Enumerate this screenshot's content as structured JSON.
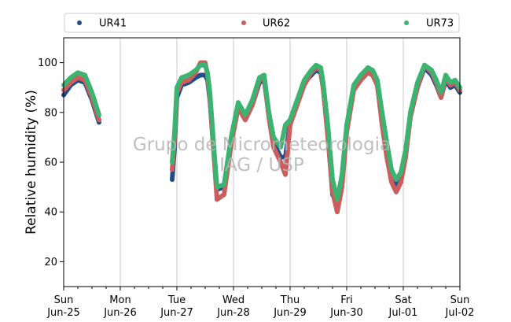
{
  "colors": {
    "UR41": "#1f4e8c",
    "UR62": "#cd5c5c",
    "UR73": "#3cb371",
    "grid": "#c8c8c8",
    "watermark": "#b4b4b4"
  },
  "watermark": {
    "line1": "Grupo de Micrometeorologia",
    "line2": "IAG / USP"
  },
  "chart_data": {
    "type": "scatter",
    "title": "",
    "xlabel": "",
    "ylabel": "Relative humidity (%)",
    "ylim": [
      10,
      110
    ],
    "yticks": [
      20,
      40,
      60,
      80,
      100
    ],
    "grid": "vertical at day boundaries",
    "legend_placement": "top",
    "x_start": "2017-06-25 00:00",
    "x_end": "2017-07-02 00:00",
    "x_ticks": [
      {
        "day": "Sun",
        "date": "Jun-25"
      },
      {
        "day": "Mon",
        "date": "Jun-26"
      },
      {
        "day": "Tue",
        "date": "Jun-27"
      },
      {
        "day": "Wed",
        "date": "Jun-28"
      },
      {
        "day": "Thu",
        "date": "Jun-29"
      },
      {
        "day": "Fri",
        "date": "Jun-30"
      },
      {
        "day": "Sat",
        "date": "Jul-01"
      },
      {
        "day": "Sun",
        "date": "Jul-02"
      }
    ],
    "series": [
      {
        "name": "UR73",
        "x": [
          "2017-06-25 00:00",
          "2017-06-25 03:00",
          "2017-06-25 06:00",
          "2017-06-25 09:00",
          "2017-06-25 12:00",
          "2017-06-25 14:00",
          "2017-06-25 15:00",
          "2017-06-26 22:00",
          "2017-06-26 23:00",
          "2017-06-27 00:00",
          "2017-06-27 02:00",
          "2017-06-27 05:00",
          "2017-06-27 08:00",
          "2017-06-27 10:00",
          "2017-06-27 12:00",
          "2017-06-27 13:00",
          "2017-06-27 14:00",
          "2017-06-27 15:00",
          "2017-06-27 16:00",
          "2017-06-27 17:00",
          "2017-06-27 20:00",
          "2017-06-27 23:00",
          "2017-06-28 02:00",
          "2017-06-28 05:00",
          "2017-06-28 08:00",
          "2017-06-28 11:00",
          "2017-06-28 13:00",
          "2017-06-28 15:00",
          "2017-06-28 17:00",
          "2017-06-28 20:00",
          "2017-06-28 22:00",
          "2017-06-29 00:00",
          "2017-06-29 03:00",
          "2017-06-29 06:00",
          "2017-06-29 09:00",
          "2017-06-29 11:00",
          "2017-06-29 13:00",
          "2017-06-29 14:00",
          "2017-06-29 16:00",
          "2017-06-29 18:00",
          "2017-06-29 20:00",
          "2017-06-29 22:00",
          "2017-06-30 00:00",
          "2017-06-30 03:00",
          "2017-06-30 06:00",
          "2017-06-30 09:00",
          "2017-06-30 11:00",
          "2017-06-30 13:00",
          "2017-06-30 15:00",
          "2017-06-30 17:00",
          "2017-06-30 19:00",
          "2017-06-30 21:00",
          "2017-06-30 23:00",
          "2017-07-01 01:00",
          "2017-07-01 03:00",
          "2017-07-01 06:00",
          "2017-07-01 09:00",
          "2017-07-01 12:00",
          "2017-07-01 14:00",
          "2017-07-01 16:00",
          "2017-07-01 18:00",
          "2017-07-01 20:00",
          "2017-07-01 22:00",
          "2017-07-02 00:00"
        ],
        "y": [
          91,
          94,
          96,
          95,
          88,
          82,
          79,
          60,
          72,
          90,
          94,
          95,
          97,
          99,
          99,
          96,
          88,
          75,
          62,
          50,
          51,
          70,
          84,
          79,
          85,
          94,
          95,
          80,
          70,
          66,
          75,
          77,
          85,
          93,
          97,
          99,
          98,
          92,
          75,
          53,
          45,
          55,
          75,
          91,
          95,
          98,
          97,
          93,
          80,
          68,
          57,
          53,
          56,
          65,
          80,
          92,
          99,
          97,
          93,
          88,
          95,
          92,
          93,
          90
        ]
      },
      {
        "name": "UR62",
        "x": [
          "2017-06-25 00:00",
          "2017-06-25 03:00",
          "2017-06-25 06:00",
          "2017-06-25 09:00",
          "2017-06-25 12:00",
          "2017-06-25 14:00",
          "2017-06-25 15:00",
          "2017-06-26 22:00",
          "2017-06-26 23:00",
          "2017-06-27 00:00",
          "2017-06-27 02:00",
          "2017-06-27 05:00",
          "2017-06-27 08:00",
          "2017-06-27 10:00",
          "2017-06-27 12:00",
          "2017-06-27 13:00",
          "2017-06-27 14:00",
          "2017-06-27 15:00",
          "2017-06-27 16:00",
          "2017-06-27 17:00",
          "2017-06-27 20:00",
          "2017-06-27 23:00",
          "2017-06-28 02:00",
          "2017-06-28 05:00",
          "2017-06-28 08:00",
          "2017-06-28 11:00",
          "2017-06-28 13:00",
          "2017-06-28 15:00",
          "2017-06-28 17:00",
          "2017-06-28 20:00",
          "2017-06-28 22:00",
          "2017-06-29 00:00",
          "2017-06-29 03:00",
          "2017-06-29 06:00",
          "2017-06-29 09:00",
          "2017-06-29 11:00",
          "2017-06-29 13:00",
          "2017-06-29 14:00",
          "2017-06-29 16:00",
          "2017-06-29 18:00",
          "2017-06-29 20:00",
          "2017-06-29 22:00",
          "2017-06-30 00:00",
          "2017-06-30 03:00",
          "2017-06-30 06:00",
          "2017-06-30 09:00",
          "2017-06-30 11:00",
          "2017-06-30 13:00",
          "2017-06-30 15:00",
          "2017-06-30 17:00",
          "2017-06-30 19:00",
          "2017-06-30 21:00",
          "2017-06-30 23:00",
          "2017-07-01 01:00",
          "2017-07-01 03:00",
          "2017-07-01 06:00",
          "2017-07-01 09:00",
          "2017-07-01 12:00",
          "2017-07-01 14:00",
          "2017-07-01 16:00",
          "2017-07-01 18:00",
          "2017-07-01 20:00",
          "2017-07-01 22:00",
          "2017-07-02 00:00"
        ],
        "y": [
          89,
          92,
          94,
          93,
          86,
          80,
          77,
          57,
          69,
          88,
          92,
          93,
          96,
          100,
          100,
          95,
          86,
          72,
          59,
          45,
          47,
          67,
          82,
          77,
          83,
          93,
          94,
          78,
          66,
          60,
          55,
          75,
          83,
          91,
          96,
          98,
          97,
          90,
          70,
          48,
          40,
          50,
          72,
          89,
          93,
          96,
          95,
          91,
          75,
          62,
          52,
          48,
          52,
          62,
          78,
          90,
          99,
          96,
          92,
          86,
          94,
          91,
          92,
          89
        ]
      },
      {
        "name": "UR41",
        "x": [
          "2017-06-25 00:00",
          "2017-06-25 03:00",
          "2017-06-25 06:00",
          "2017-06-25 09:00",
          "2017-06-25 12:00",
          "2017-06-25 14:00",
          "2017-06-25 15:00",
          "2017-06-26 22:00",
          "2017-06-26 23:00",
          "2017-06-27 00:00",
          "2017-06-27 02:00",
          "2017-06-27 05:00",
          "2017-06-27 08:00",
          "2017-06-27 10:00",
          "2017-06-27 12:00",
          "2017-06-27 13:00",
          "2017-06-27 14:00",
          "2017-06-27 15:00",
          "2017-06-27 16:00",
          "2017-06-27 17:00",
          "2017-06-27 20:00",
          "2017-06-27 23:00",
          "2017-06-28 02:00",
          "2017-06-28 05:00",
          "2017-06-28 08:00",
          "2017-06-28 11:00",
          "2017-06-28 13:00",
          "2017-06-28 15:00",
          "2017-06-28 17:00",
          "2017-06-28 20:00",
          "2017-06-28 22:00",
          "2017-06-29 00:00",
          "2017-06-29 03:00",
          "2017-06-29 06:00",
          "2017-06-29 09:00",
          "2017-06-29 11:00",
          "2017-06-29 13:00",
          "2017-06-29 14:00",
          "2017-06-29 16:00",
          "2017-06-29 18:00",
          "2017-06-29 20:00",
          "2017-06-29 22:00",
          "2017-06-30 00:00",
          "2017-06-30 03:00",
          "2017-06-30 06:00",
          "2017-06-30 09:00",
          "2017-06-30 11:00",
          "2017-06-30 13:00",
          "2017-06-30 15:00",
          "2017-06-30 17:00",
          "2017-06-30 19:00",
          "2017-06-30 21:00",
          "2017-06-30 23:00",
          "2017-07-01 01:00",
          "2017-07-01 03:00",
          "2017-07-01 06:00",
          "2017-07-01 09:00",
          "2017-07-01 12:00",
          "2017-07-01 14:00",
          "2017-07-01 16:00",
          "2017-07-01 18:00",
          "2017-07-01 20:00",
          "2017-07-01 22:00",
          "2017-07-02 00:00"
        ],
        "y": [
          87,
          91,
          93,
          92,
          85,
          79,
          76,
          53,
          66,
          86,
          91,
          92,
          94,
          95,
          95,
          93,
          85,
          72,
          60,
          49,
          50,
          68,
          82,
          77,
          83,
          92,
          93,
          79,
          68,
          62,
          62,
          76,
          84,
          92,
          95,
          97,
          96,
          90,
          72,
          47,
          43,
          52,
          74,
          90,
          94,
          96,
          95,
          91,
          77,
          64,
          55,
          51,
          53,
          63,
          79,
          90,
          98,
          95,
          91,
          86,
          93,
          90,
          91,
          88
        ]
      }
    ]
  }
}
